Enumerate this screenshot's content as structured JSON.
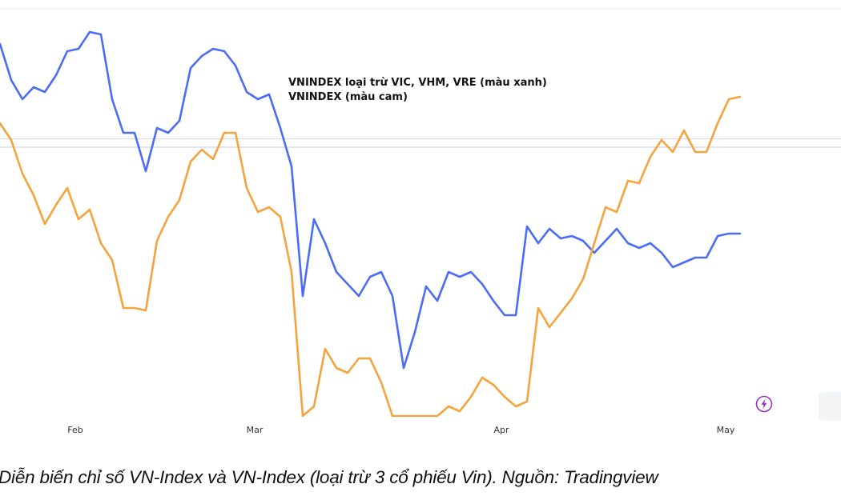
{
  "chart_data": {
    "type": "line",
    "annotations": [
      "VNINDEX loại trừ VIC, VHM, VRE (màu xanh)",
      "VNINDEX (màu cam)"
    ],
    "x_tick_labels": [
      "Feb",
      "Mar",
      "Apr",
      "May"
    ],
    "x_tick_index": [
      6,
      22,
      44,
      64
    ],
    "grid": false,
    "y_reference_values": [
      42,
      45.5
    ],
    "series": [
      {
        "color": "#4a6cf7",
        "values": [
          85,
          70,
          62,
          67,
          65,
          72,
          82,
          83,
          90,
          89,
          62,
          48,
          48,
          32,
          50,
          48,
          53,
          75,
          80,
          83,
          82,
          76,
          65,
          62,
          64,
          50,
          34,
          -20,
          12,
          2,
          -10,
          -15,
          -20,
          -12,
          -10,
          -20,
          -50,
          -35,
          -16,
          -22,
          -10,
          -12,
          -10,
          -15,
          -22,
          -28,
          -28,
          9,
          2,
          8,
          4,
          5,
          3,
          -2,
          3,
          8,
          2,
          0,
          2,
          -2,
          -8,
          -6,
          -4,
          -4,
          5,
          6,
          6
        ],
        "color_name": "blue"
      },
      {
        "color": "#f5a33b",
        "values": [
          52,
          45,
          31,
          22,
          10,
          18,
          25,
          12,
          16,
          2,
          -5,
          -25,
          -25,
          -26,
          3,
          13,
          20,
          36,
          41,
          37,
          48,
          48,
          25,
          15,
          17,
          13,
          -10,
          -70,
          -66,
          -42,
          -50,
          -52,
          -46,
          -46,
          -56,
          -70,
          -70,
          -70,
          -70,
          -70,
          -66,
          -68,
          -62,
          -54,
          -57,
          -62,
          -66,
          -64,
          -25,
          -33,
          -27,
          -21,
          -13,
          2,
          17,
          15,
          28,
          27,
          38,
          45,
          40,
          49,
          40,
          40,
          52,
          62,
          63
        ],
        "color_name": "orange"
      }
    ]
  },
  "caption": "Diễn biến chỉ số VN-Index và VN-Index (loại trừ 3 cổ phiếu Vin). Nguồn: Tradingview",
  "icons": {
    "flash": "lightning-bolt-icon"
  }
}
